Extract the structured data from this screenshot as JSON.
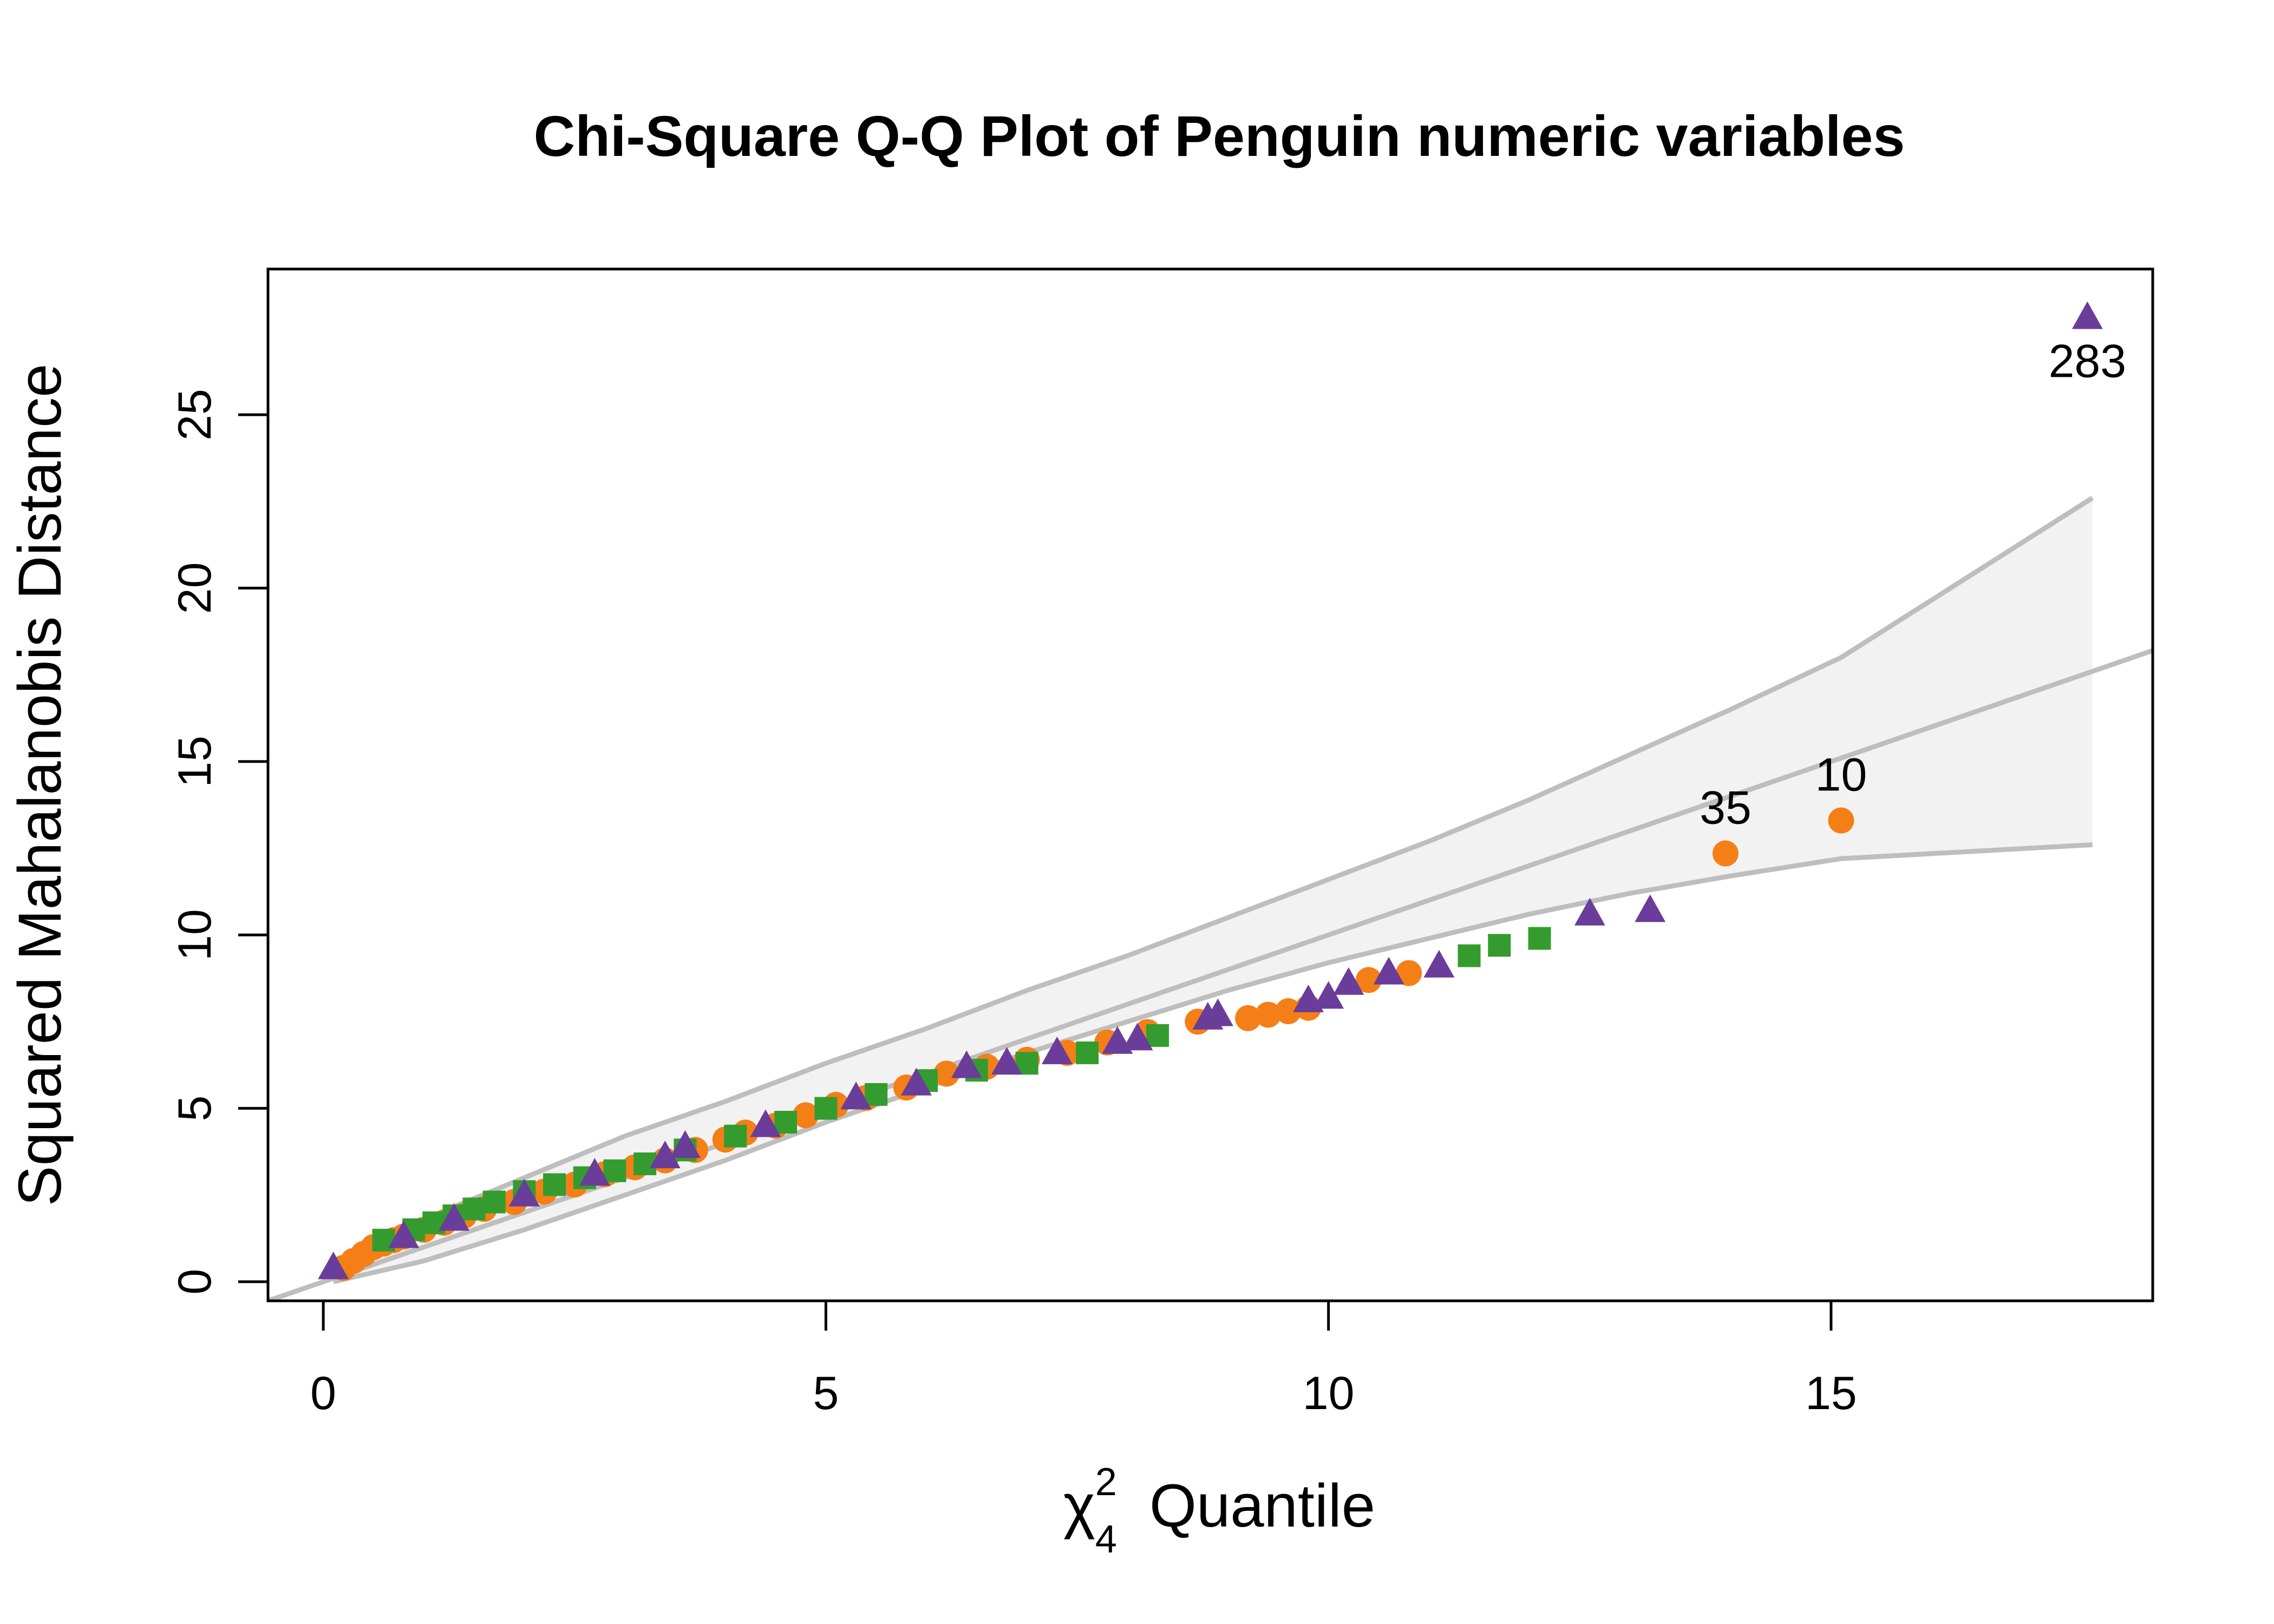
{
  "chart_data": {
    "type": "scatter",
    "title": "Chi-Square Q-Q Plot of Penguin numeric variables",
    "xlabel": {
      "symbol": "χ",
      "superscript": "2",
      "subscript": "4",
      "text": "Quantile"
    },
    "ylabel": "Squared Mahalanobis Distance",
    "xlim": [
      -0.55,
      18.2
    ],
    "ylim": [
      -0.55,
      29.2
    ],
    "xticks": [
      0,
      5,
      10,
      15
    ],
    "yticks": [
      0,
      5,
      10,
      15,
      20,
      25
    ],
    "grid": false,
    "legend": "none",
    "reference_line": {
      "color": "#bebebe",
      "slope": 1.0,
      "intercept": 0.0
    },
    "confidence_band": {
      "fill": "#f2f2f2",
      "stroke": "#bebebe",
      "x": [
        0.1,
        1.0,
        2.0,
        3.0,
        4.0,
        5.0,
        6.0,
        7.0,
        8.0,
        9.0,
        10.0,
        11.0,
        12.0,
        13.0,
        14.0,
        15.1,
        17.6
      ],
      "upper": [
        0.3,
        1.8,
        3.0,
        4.2,
        5.2,
        6.3,
        7.3,
        8.4,
        9.4,
        10.5,
        11.6,
        12.7,
        13.9,
        15.2,
        16.5,
        18.0,
        22.6
      ],
      "lower": [
        0.0,
        0.6,
        1.5,
        2.5,
        3.5,
        4.6,
        5.6,
        6.6,
        7.5,
        8.4,
        9.2,
        9.9,
        10.6,
        11.2,
        11.7,
        12.2,
        12.6
      ]
    },
    "series": [
      {
        "name": "",
        "color": "#f57f17",
        "shape": "circle",
        "points": [
          [
            0.2,
            0.4
          ],
          [
            0.3,
            0.6
          ],
          [
            0.4,
            0.8
          ],
          [
            0.5,
            1.0
          ],
          [
            0.6,
            1.1
          ],
          [
            0.7,
            1.2
          ],
          [
            0.8,
            1.3
          ],
          [
            1.0,
            1.5
          ],
          [
            1.2,
            1.7
          ],
          [
            1.4,
            1.9
          ],
          [
            1.6,
            2.1
          ],
          [
            1.9,
            2.3
          ],
          [
            2.2,
            2.6
          ],
          [
            2.5,
            2.8
          ],
          [
            2.8,
            3.1
          ],
          [
            3.1,
            3.3
          ],
          [
            3.4,
            3.5
          ],
          [
            3.7,
            3.8
          ],
          [
            4.0,
            4.1
          ],
          [
            4.2,
            4.3
          ],
          [
            4.5,
            4.5
          ],
          [
            4.8,
            4.8
          ],
          [
            5.1,
            5.1
          ],
          [
            5.4,
            5.3
          ],
          [
            5.8,
            5.6
          ],
          [
            6.2,
            6.0
          ],
          [
            6.6,
            6.2
          ],
          [
            7.0,
            6.4
          ],
          [
            7.4,
            6.6
          ],
          [
            7.8,
            6.9
          ],
          [
            8.2,
            7.2
          ],
          [
            8.7,
            7.5
          ],
          [
            9.2,
            7.6
          ],
          [
            9.4,
            7.7
          ],
          [
            9.6,
            7.8
          ],
          [
            9.8,
            7.9
          ],
          [
            10.4,
            8.7
          ],
          [
            10.8,
            8.9
          ],
          [
            13.95,
            12.35
          ],
          [
            15.1,
            13.3
          ]
        ]
      },
      {
        "name": "",
        "color": "#349c2e",
        "shape": "square",
        "points": [
          [
            0.6,
            1.2
          ],
          [
            0.9,
            1.5
          ],
          [
            1.1,
            1.7
          ],
          [
            1.3,
            1.9
          ],
          [
            1.5,
            2.1
          ],
          [
            1.7,
            2.3
          ],
          [
            2.0,
            2.6
          ],
          [
            2.3,
            2.8
          ],
          [
            2.6,
            3.0
          ],
          [
            2.9,
            3.2
          ],
          [
            3.2,
            3.4
          ],
          [
            3.6,
            3.8
          ],
          [
            4.1,
            4.2
          ],
          [
            4.6,
            4.6
          ],
          [
            5.0,
            5.0
          ],
          [
            5.5,
            5.4
          ],
          [
            6.0,
            5.8
          ],
          [
            6.5,
            6.1
          ],
          [
            7.0,
            6.3
          ],
          [
            7.6,
            6.6
          ],
          [
            8.3,
            7.1
          ],
          [
            11.4,
            9.4
          ],
          [
            11.7,
            9.7
          ],
          [
            12.1,
            9.9
          ]
        ]
      },
      {
        "name": "",
        "color": "#6a3d9a",
        "shape": "triangle",
        "points": [
          [
            0.1,
            0.4
          ],
          [
            0.8,
            1.3
          ],
          [
            1.3,
            1.8
          ],
          [
            2.0,
            2.5
          ],
          [
            2.7,
            3.1
          ],
          [
            3.4,
            3.6
          ],
          [
            3.6,
            3.9
          ],
          [
            4.4,
            4.5
          ],
          [
            5.3,
            5.3
          ],
          [
            5.9,
            5.7
          ],
          [
            6.4,
            6.2
          ],
          [
            6.8,
            6.3
          ],
          [
            7.3,
            6.6
          ],
          [
            7.9,
            6.9
          ],
          [
            8.1,
            7.0
          ],
          [
            8.8,
            7.6
          ],
          [
            8.9,
            7.7
          ],
          [
            9.8,
            8.1
          ],
          [
            10.0,
            8.2
          ],
          [
            10.2,
            8.6
          ],
          [
            10.6,
            8.9
          ],
          [
            11.1,
            9.1
          ],
          [
            12.6,
            10.6
          ],
          [
            13.2,
            10.7
          ],
          [
            17.55,
            27.8
          ]
        ]
      }
    ],
    "annotations": [
      {
        "text": "283",
        "x": 17.55,
        "y": 27.8,
        "position": "below"
      },
      {
        "text": "35",
        "x": 13.95,
        "y": 12.35,
        "position": "above"
      },
      {
        "text": "10",
        "x": 15.1,
        "y": 13.3,
        "position": "above"
      }
    ]
  }
}
